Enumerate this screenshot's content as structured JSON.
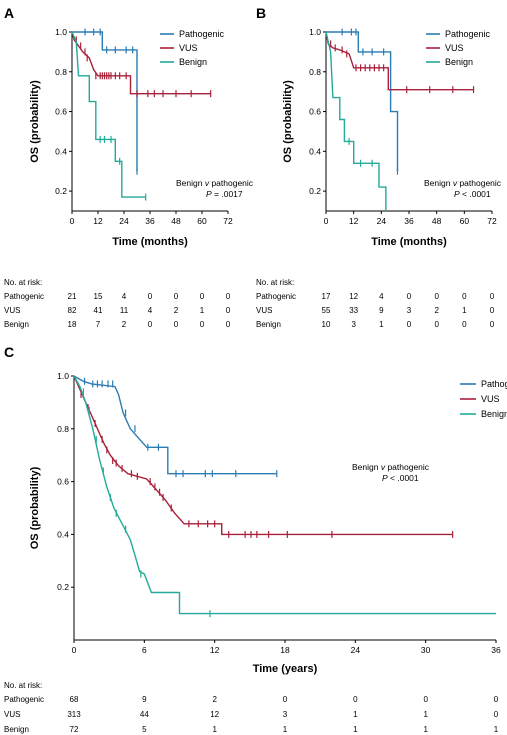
{
  "colors": {
    "pathogenic": "#2b7bb4",
    "vus": "#a8213a",
    "benign": "#22aa9a"
  },
  "chart_data": [
    {
      "panel_label": "A",
      "type": "line",
      "xlabel": "Time (months)",
      "ylabel": "OS (probability)",
      "xlim": [
        0,
        72
      ],
      "ylim": [
        0.1,
        1.0
      ],
      "xticks": [
        0,
        12,
        24,
        36,
        48,
        60,
        72
      ],
      "yticks": [
        0.2,
        0.4,
        0.6,
        0.8,
        1.0
      ],
      "legend_position": "top-right",
      "annotation": {
        "line1": "Benign v pathogenic",
        "line2": "P = .0017"
      },
      "series": [
        {
          "name": "Pathogenic",
          "color_key": "pathogenic",
          "points": [
            [
              0,
              1.0
            ],
            [
              14,
              1.0
            ],
            [
              14,
              0.91
            ],
            [
              30,
              0.91
            ],
            [
              30,
              0.3
            ]
          ],
          "censors": [
            [
              6,
              1.0
            ],
            [
              10,
              1.0
            ],
            [
              13,
              1.0
            ],
            [
              16,
              0.91
            ],
            [
              20,
              0.91
            ],
            [
              25,
              0.91
            ],
            [
              28,
              0.91
            ],
            [
              30,
              0.3
            ]
          ]
        },
        {
          "name": "VUS",
          "color_key": "vus",
          "points": [
            [
              0,
              1.0
            ],
            [
              1,
              0.96
            ],
            [
              3,
              0.93
            ],
            [
              5,
              0.9
            ],
            [
              8,
              0.87
            ],
            [
              10,
              0.81
            ],
            [
              12,
              0.78
            ],
            [
              27,
              0.78
            ],
            [
              27,
              0.69
            ],
            [
              64,
              0.69
            ]
          ],
          "censors": [
            [
              2,
              0.96
            ],
            [
              4,
              0.93
            ],
            [
              6,
              0.9
            ],
            [
              7,
              0.87
            ],
            [
              11,
              0.78
            ],
            [
              13,
              0.78
            ],
            [
              14,
              0.78
            ],
            [
              15,
              0.78
            ],
            [
              16,
              0.78
            ],
            [
              17,
              0.78
            ],
            [
              18,
              0.78
            ],
            [
              20,
              0.78
            ],
            [
              22,
              0.78
            ],
            [
              25,
              0.78
            ],
            [
              30,
              0.69
            ],
            [
              35,
              0.69
            ],
            [
              38,
              0.69
            ],
            [
              42,
              0.69
            ],
            [
              48,
              0.69
            ],
            [
              55,
              0.69
            ],
            [
              64,
              0.69
            ]
          ]
        },
        {
          "name": "Benign",
          "color_key": "benign",
          "points": [
            [
              0,
              1.0
            ],
            [
              2,
              0.95
            ],
            [
              3,
              0.78
            ],
            [
              8,
              0.78
            ],
            [
              8,
              0.65
            ],
            [
              11,
              0.65
            ],
            [
              11,
              0.46
            ],
            [
              20,
              0.46
            ],
            [
              20,
              0.35
            ],
            [
              23,
              0.35
            ],
            [
              23,
              0.17
            ],
            [
              34,
              0.17
            ]
          ],
          "censors": [
            [
              13,
              0.46
            ],
            [
              15,
              0.46
            ],
            [
              18,
              0.46
            ],
            [
              22,
              0.35
            ],
            [
              34,
              0.17
            ]
          ]
        }
      ],
      "risk_table": {
        "title": "No. at risk:",
        "rows": [
          {
            "label": "Pathogenic",
            "values": [
              "21",
              "15",
              "4",
              "0",
              "0",
              "0",
              "0"
            ]
          },
          {
            "label": "VUS",
            "values": [
              "82",
              "41",
              "11",
              "4",
              "2",
              "1",
              "0"
            ]
          },
          {
            "label": "Benign",
            "values": [
              "18",
              "7",
              "2",
              "0",
              "0",
              "0",
              "0"
            ]
          }
        ]
      }
    },
    {
      "panel_label": "B",
      "type": "line",
      "xlabel": "Time (months)",
      "ylabel": "OS (probability)",
      "xlim": [
        0,
        72
      ],
      "ylim": [
        0.1,
        1.0
      ],
      "xticks": [
        0,
        12,
        24,
        36,
        48,
        60,
        72
      ],
      "yticks": [
        0.2,
        0.4,
        0.6,
        0.8,
        1.0
      ],
      "legend_position": "top-right",
      "annotation": {
        "line1": "Benign v pathogenic",
        "line2": "P < .0001"
      },
      "series": [
        {
          "name": "Pathogenic",
          "color_key": "pathogenic",
          "points": [
            [
              0,
              1.0
            ],
            [
              14,
              1.0
            ],
            [
              14,
              0.9
            ],
            [
              28,
              0.9
            ],
            [
              28,
              0.6
            ],
            [
              31,
              0.6
            ],
            [
              31,
              0.3
            ]
          ],
          "censors": [
            [
              7,
              1.0
            ],
            [
              11,
              1.0
            ],
            [
              13,
              1.0
            ],
            [
              16,
              0.9
            ],
            [
              20,
              0.9
            ],
            [
              25,
              0.9
            ],
            [
              31,
              0.3
            ]
          ]
        },
        {
          "name": "VUS",
          "color_key": "vus",
          "points": [
            [
              0,
              1.0
            ],
            [
              1,
              0.94
            ],
            [
              3,
              0.92
            ],
            [
              6,
              0.91
            ],
            [
              10,
              0.89
            ],
            [
              12,
              0.82
            ],
            [
              27,
              0.82
            ],
            [
              27,
              0.71
            ],
            [
              64,
              0.71
            ]
          ],
          "censors": [
            [
              2,
              0.94
            ],
            [
              4,
              0.92
            ],
            [
              7,
              0.91
            ],
            [
              9,
              0.89
            ],
            [
              13,
              0.82
            ],
            [
              15,
              0.82
            ],
            [
              17,
              0.82
            ],
            [
              19,
              0.82
            ],
            [
              21,
              0.82
            ],
            [
              23,
              0.82
            ],
            [
              25,
              0.82
            ],
            [
              35,
              0.71
            ],
            [
              45,
              0.71
            ],
            [
              55,
              0.71
            ],
            [
              64,
              0.71
            ]
          ]
        },
        {
          "name": "Benign",
          "color_key": "benign",
          "points": [
            [
              0,
              1.0
            ],
            [
              2,
              0.9
            ],
            [
              3,
              0.67
            ],
            [
              6,
              0.67
            ],
            [
              6,
              0.56
            ],
            [
              8,
              0.56
            ],
            [
              8,
              0.45
            ],
            [
              12,
              0.45
            ],
            [
              12,
              0.34
            ],
            [
              23,
              0.34
            ],
            [
              23,
              0.22
            ],
            [
              26,
              0.22
            ],
            [
              26,
              0.0
            ]
          ],
          "censors": [
            [
              10,
              0.45
            ],
            [
              15,
              0.34
            ],
            [
              20,
              0.34
            ]
          ]
        }
      ],
      "risk_table": {
        "title": "No. at risk:",
        "rows": [
          {
            "label": "Pathogenic",
            "values": [
              "17",
              "12",
              "4",
              "0",
              "0",
              "0",
              "0"
            ]
          },
          {
            "label": "VUS",
            "values": [
              "55",
              "33",
              "9",
              "3",
              "2",
              "1",
              "0"
            ]
          },
          {
            "label": "Benign",
            "values": [
              "10",
              "3",
              "1",
              "0",
              "0",
              "0",
              "0"
            ]
          }
        ]
      }
    },
    {
      "panel_label": "C",
      "type": "line",
      "xlabel": "Time (years)",
      "ylabel": "OS (probability)",
      "xlim": [
        0,
        36
      ],
      "ylim": [
        0.0,
        1.0
      ],
      "xticks": [
        0,
        6,
        12,
        18,
        24,
        30,
        36
      ],
      "yticks": [
        0.2,
        0.4,
        0.6,
        0.8,
        1.0
      ],
      "legend_position": "top-right",
      "annotation": {
        "line1": "Benign v pathogenic",
        "line2": "P < .0001"
      },
      "series": [
        {
          "name": "Pathogenic",
          "color_key": "pathogenic",
          "points": [
            [
              0,
              1.0
            ],
            [
              0.8,
              0.98
            ],
            [
              1.5,
              0.97
            ],
            [
              3.5,
              0.96
            ],
            [
              3.8,
              0.93
            ],
            [
              4.2,
              0.86
            ],
            [
              4.8,
              0.8
            ],
            [
              6.2,
              0.73
            ],
            [
              8,
              0.73
            ],
            [
              8,
              0.63
            ],
            [
              17.3,
              0.63
            ]
          ],
          "censors": [
            [
              0.9,
              0.98
            ],
            [
              1.6,
              0.97
            ],
            [
              2.0,
              0.97
            ],
            [
              2.4,
              0.97
            ],
            [
              2.9,
              0.97
            ],
            [
              3.3,
              0.97
            ],
            [
              4.4,
              0.86
            ],
            [
              5.2,
              0.8
            ],
            [
              6.3,
              0.73
            ],
            [
              7.2,
              0.73
            ],
            [
              8.7,
              0.63
            ],
            [
              9.3,
              0.63
            ],
            [
              11.2,
              0.63
            ],
            [
              11.8,
              0.63
            ],
            [
              13.8,
              0.63
            ],
            [
              17.3,
              0.63
            ]
          ]
        },
        {
          "name": "VUS",
          "color_key": "vus",
          "points": [
            [
              0,
              1.0
            ],
            [
              0.4,
              0.96
            ],
            [
              1.0,
              0.9
            ],
            [
              1.6,
              0.84
            ],
            [
              2.2,
              0.78
            ],
            [
              2.6,
              0.74
            ],
            [
              3.1,
              0.7
            ],
            [
              3.8,
              0.66
            ],
            [
              4.6,
              0.63
            ],
            [
              6.2,
              0.61
            ],
            [
              7.0,
              0.57
            ],
            [
              7.8,
              0.53
            ],
            [
              8.6,
              0.48
            ],
            [
              9.4,
              0.44
            ],
            [
              12.6,
              0.44
            ],
            [
              12.6,
              0.4
            ],
            [
              32.3,
              0.4
            ]
          ],
          "censors": [
            [
              0.6,
              0.93
            ],
            [
              1.2,
              0.88
            ],
            [
              1.8,
              0.82
            ],
            [
              2.4,
              0.76
            ],
            [
              2.8,
              0.72
            ],
            [
              3.3,
              0.68
            ],
            [
              3.6,
              0.67
            ],
            [
              4.1,
              0.65
            ],
            [
              4.9,
              0.63
            ],
            [
              5.4,
              0.62
            ],
            [
              6.5,
              0.6
            ],
            [
              6.9,
              0.58
            ],
            [
              7.3,
              0.56
            ],
            [
              7.6,
              0.54
            ],
            [
              8.3,
              0.5
            ],
            [
              9.8,
              0.44
            ],
            [
              10.6,
              0.44
            ],
            [
              11.4,
              0.44
            ],
            [
              12.0,
              0.44
            ],
            [
              13.2,
              0.4
            ],
            [
              14.6,
              0.4
            ],
            [
              15.1,
              0.4
            ],
            [
              15.6,
              0.4
            ],
            [
              16.6,
              0.4
            ],
            [
              18.2,
              0.4
            ],
            [
              22.0,
              0.4
            ],
            [
              32.3,
              0.4
            ]
          ]
        },
        {
          "name": "Benign",
          "color_key": "benign",
          "points": [
            [
              0,
              1.0
            ],
            [
              0.5,
              0.96
            ],
            [
              1.0,
              0.9
            ],
            [
              1.6,
              0.8
            ],
            [
              2.2,
              0.68
            ],
            [
              2.8,
              0.58
            ],
            [
              3.4,
              0.5
            ],
            [
              4.1,
              0.44
            ],
            [
              4.8,
              0.38
            ],
            [
              5.2,
              0.32
            ],
            [
              5.6,
              0.26
            ],
            [
              6.0,
              0.25
            ],
            [
              6.6,
              0.18
            ],
            [
              9,
              0.18
            ],
            [
              9,
              0.1
            ],
            [
              36,
              0.1
            ]
          ],
          "censors": [
            [
              0.8,
              0.94
            ],
            [
              1.3,
              0.87
            ],
            [
              1.9,
              0.76
            ],
            [
              2.5,
              0.64
            ],
            [
              3.1,
              0.54
            ],
            [
              3.6,
              0.48
            ],
            [
              4.4,
              0.42
            ],
            [
              5.7,
              0.25
            ],
            [
              11.6,
              0.1
            ]
          ]
        }
      ],
      "risk_table": {
        "title": "No. at risk:",
        "rows": [
          {
            "label": "Pathogenic",
            "values": [
              "68",
              "9",
              "2",
              "0",
              "0",
              "0",
              "0"
            ]
          },
          {
            "label": "VUS",
            "values": [
              "313",
              "44",
              "12",
              "3",
              "1",
              "1",
              "0"
            ]
          },
          {
            "label": "Benign",
            "values": [
              "72",
              "5",
              "1",
              "1",
              "1",
              "1",
              "1"
            ]
          }
        ]
      }
    }
  ]
}
